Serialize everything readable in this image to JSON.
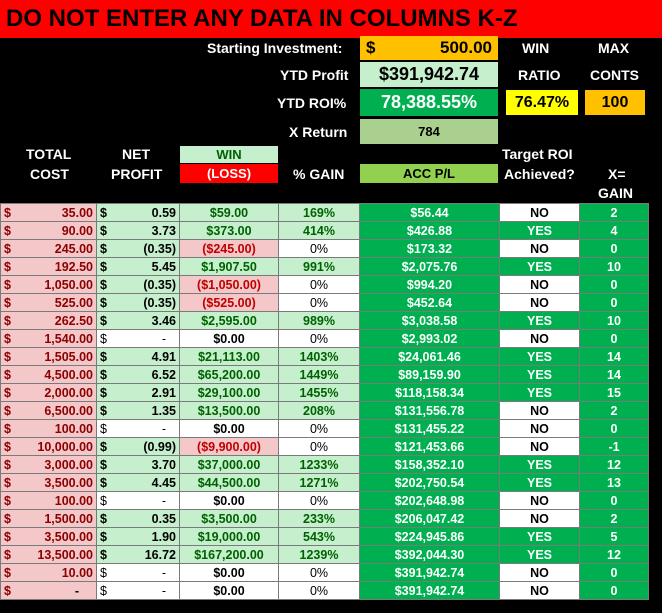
{
  "banner": "DO NOT ENTER ANY DATA IN COLUMNS K-Z",
  "summary": {
    "starting_investment_label": "Starting Investment:",
    "starting_investment_symbol": "$",
    "starting_investment_value": "500.00",
    "ytd_profit_label": "YTD Profit",
    "ytd_profit_value": "$391,942.74",
    "ytd_roi_label": "YTD ROI%",
    "ytd_roi_value": "78,388.55%",
    "x_return_label": "X Return",
    "x_return_value": "784",
    "win_label": "WIN",
    "ratio_label": "RATIO",
    "ratio_value": "76.47%",
    "max_label": "MAX",
    "conts_label": "CONTS",
    "conts_value": "100"
  },
  "headers": {
    "total": "TOTAL",
    "cost": "COST",
    "net": "NET",
    "profit": "PROFIT",
    "win": "WIN",
    "loss": "(LOSS)",
    "pct_gain": "% GAIN",
    "acc_pl": "ACC P/L",
    "target_roi": "Target ROI",
    "achieved": "Achieved?",
    "x_eq": "X=",
    "gain": "GAIN"
  },
  "colors": {
    "banner": "#ff0000",
    "dark_green": "#00b050",
    "light_green": "#c6efce",
    "pink": "#f4c7c9",
    "gold": "#ffc000",
    "yellow": "#ffff00"
  },
  "rows": [
    {
      "cost": "35.00",
      "profit_sym": "$",
      "profit": "0.59",
      "winloss": "$59.00",
      "loss": false,
      "pct": "169%",
      "acc": "$56.44",
      "target": "NO",
      "x": "2"
    },
    {
      "cost": "90.00",
      "profit_sym": "$",
      "profit": "3.73",
      "winloss": "$373.00",
      "loss": false,
      "pct": "414%",
      "acc": "$426.88",
      "target": "YES",
      "x": "4"
    },
    {
      "cost": "245.00",
      "profit_sym": "$",
      "profit": "(0.35)",
      "winloss": "($245.00)",
      "loss": true,
      "pct": "0%",
      "acc": "$173.32",
      "target": "NO",
      "x": "0"
    },
    {
      "cost": "192.50",
      "profit_sym": "$",
      "profit": "5.45",
      "winloss": "$1,907.50",
      "loss": false,
      "pct": "991%",
      "acc": "$2,075.76",
      "target": "YES",
      "x": "10"
    },
    {
      "cost": "1,050.00",
      "profit_sym": "$",
      "profit": "(0.35)",
      "winloss": "($1,050.00)",
      "loss": true,
      "pct": "0%",
      "acc": "$994.20",
      "target": "NO",
      "x": "0"
    },
    {
      "cost": "525.00",
      "profit_sym": "$",
      "profit": "(0.35)",
      "winloss": "($525.00)",
      "loss": true,
      "pct": "0%",
      "acc": "$452.64",
      "target": "NO",
      "x": "0"
    },
    {
      "cost": "262.50",
      "profit_sym": "$",
      "profit": "3.46",
      "winloss": "$2,595.00",
      "loss": false,
      "pct": "989%",
      "acc": "$3,038.58",
      "target": "YES",
      "x": "10"
    },
    {
      "cost": "1,540.00",
      "profit_sym": "$",
      "profit": "-",
      "winloss": "$0.00",
      "loss": false,
      "pct": "0%",
      "acc": "$2,993.02",
      "target": "NO",
      "x": "0"
    },
    {
      "cost": "1,505.00",
      "profit_sym": "$",
      "profit": "4.91",
      "winloss": "$21,113.00",
      "loss": false,
      "pct": "1403%",
      "acc": "$24,061.46",
      "target": "YES",
      "x": "14"
    },
    {
      "cost": "4,500.00",
      "profit_sym": "$",
      "profit": "6.52",
      "winloss": "$65,200.00",
      "loss": false,
      "pct": "1449%",
      "acc": "$89,159.90",
      "target": "YES",
      "x": "14"
    },
    {
      "cost": "2,000.00",
      "profit_sym": "$",
      "profit": "2.91",
      "winloss": "$29,100.00",
      "loss": false,
      "pct": "1455%",
      "acc": "$118,158.34",
      "target": "YES",
      "x": "15"
    },
    {
      "cost": "6,500.00",
      "profit_sym": "$",
      "profit": "1.35",
      "winloss": "$13,500.00",
      "loss": false,
      "pct": "208%",
      "acc": "$131,556.78",
      "target": "NO",
      "x": "2"
    },
    {
      "cost": "100.00",
      "profit_sym": "$",
      "profit": "-",
      "winloss": "$0.00",
      "loss": false,
      "pct": "0%",
      "acc": "$131,455.22",
      "target": "NO",
      "x": "0"
    },
    {
      "cost": "10,000.00",
      "profit_sym": "$",
      "profit": "(0.99)",
      "winloss": "($9,900.00)",
      "loss": true,
      "pct": "0%",
      "acc": "$121,453.66",
      "target": "NO",
      "x": "-1"
    },
    {
      "cost": "3,000.00",
      "profit_sym": "$",
      "profit": "3.70",
      "winloss": "$37,000.00",
      "loss": false,
      "pct": "1233%",
      "acc": "$158,352.10",
      "target": "YES",
      "x": "12"
    },
    {
      "cost": "3,500.00",
      "profit_sym": "$",
      "profit": "4.45",
      "winloss": "$44,500.00",
      "loss": false,
      "pct": "1271%",
      "acc": "$202,750.54",
      "target": "YES",
      "x": "13"
    },
    {
      "cost": "100.00",
      "profit_sym": "$",
      "profit": "-",
      "winloss": "$0.00",
      "loss": false,
      "pct": "0%",
      "acc": "$202,648.98",
      "target": "NO",
      "x": "0"
    },
    {
      "cost": "1,500.00",
      "profit_sym": "$",
      "profit": "0.35",
      "winloss": "$3,500.00",
      "loss": false,
      "pct": "233%",
      "acc": "$206,047.42",
      "target": "NO",
      "x": "2"
    },
    {
      "cost": "3,500.00",
      "profit_sym": "$",
      "profit": "1.90",
      "winloss": "$19,000.00",
      "loss": false,
      "pct": "543%",
      "acc": "$224,945.86",
      "target": "YES",
      "x": "5"
    },
    {
      "cost": "13,500.00",
      "profit_sym": "$",
      "profit": "16.72",
      "winloss": "$167,200.00",
      "loss": false,
      "pct": "1239%",
      "acc": "$392,044.30",
      "target": "YES",
      "x": "12"
    },
    {
      "cost": "10.00",
      "profit_sym": "$",
      "profit": "-",
      "winloss": "$0.00",
      "loss": false,
      "pct": "0%",
      "acc": "$391,942.74",
      "target": "NO",
      "x": "0"
    },
    {
      "cost": "-",
      "profit_sym": "$",
      "profit": "-",
      "winloss": "$0.00",
      "loss": false,
      "pct": "0%",
      "acc": "$391,942.74",
      "target": "NO",
      "x": "0"
    }
  ]
}
